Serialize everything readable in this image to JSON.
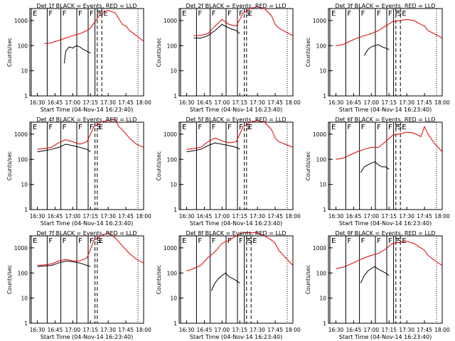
{
  "chart_data": {
    "type": "line",
    "layout": "3x3 grid",
    "panels": [
      {
        "title": "Det 1f BLACK = Events, RED = LLD",
        "xlabel": "Start Time (04-Nov-14 16:23:40)",
        "ylabel": "Counts/sec",
        "series": [
          {
            "color": "#000000",
            "x": [
              16.88,
              16.9,
              16.95,
              17.0,
              17.05,
              17.1,
              17.15,
              17.2,
              17.25
            ],
            "y": [
              20,
              60,
              90,
              80,
              100,
              90,
              70,
              60,
              50
            ]
          },
          {
            "color": "#dd0000",
            "x": [
              16.6,
              16.7,
              16.8,
              16.9,
              17.0,
              17.1,
              17.2,
              17.25,
              17.4,
              17.5,
              17.6,
              17.7,
              17.75,
              17.8,
              17.9,
              18.0
            ],
            "y": [
              120,
              130,
              160,
              200,
              250,
              300,
              400,
              500,
              2000,
              2500,
              2000,
              700,
              600,
              400,
              250,
              150
            ]
          }
        ],
        "markers": [
          {
            "label": "E"
          },
          {
            "label": "F"
          },
          {
            "label": "F"
          },
          {
            "label": "F"
          },
          {
            "label": "F"
          },
          {
            "label": "F"
          },
          {
            "label": "S"
          },
          {
            "label": "E"
          }
        ]
      },
      {
        "title": "Det 2f BLACK = Events, RED = LLD",
        "xlabel": "Start Time (04-Nov-14 16:23:40)",
        "ylabel": "Counts/sec",
        "series": [
          {
            "color": "#000000",
            "x": [
              16.6,
              16.7,
              16.8,
              16.9,
              17.0,
              17.1,
              17.2,
              17.25
            ],
            "y": [
              200,
              200,
              250,
              400,
              700,
              500,
              400,
              300
            ]
          },
          {
            "color": "#dd0000",
            "x": [
              16.6,
              16.7,
              16.8,
              16.9,
              17.0,
              17.1,
              17.2,
              17.3,
              17.4,
              17.5,
              17.6,
              17.7,
              17.75,
              17.8,
              17.9,
              18.0
            ],
            "y": [
              250,
              260,
              300,
              600,
              1100,
              700,
              600,
              2000,
              3000,
              3500,
              3000,
              1500,
              700,
              500,
              350,
              250
            ]
          }
        ],
        "markers": [
          {
            "label": "E"
          },
          {
            "label": "F"
          },
          {
            "label": "F"
          },
          {
            "label": "F"
          },
          {
            "label": "F"
          },
          {
            "label": "S"
          },
          {
            "label": "E"
          }
        ]
      },
      {
        "title": "Det 3f BLACK = Events, RED = LLD",
        "xlabel": "Start Time (04-Nov-14 16:23:40)",
        "ylabel": "Counts/sec",
        "series": [
          {
            "color": "#000000",
            "x": [
              16.9,
              16.95,
              17.0,
              17.05,
              17.1,
              17.15,
              17.2,
              17.25
            ],
            "y": [
              40,
              70,
              90,
              100,
              110,
              90,
              80,
              70
            ]
          },
          {
            "color": "#dd0000",
            "x": [
              16.5,
              16.6,
              16.7,
              16.8,
              16.9,
              17.0,
              17.1,
              17.2,
              17.3,
              17.5,
              17.6,
              17.7,
              17.75,
              17.8,
              18.0
            ],
            "y": [
              100,
              110,
              150,
              200,
              250,
              300,
              400,
              600,
              900,
              1100,
              1000,
              700,
              600,
              400,
              200
            ]
          }
        ],
        "markers": [
          {
            "label": "E"
          },
          {
            "label": "F"
          },
          {
            "label": "F"
          },
          {
            "label": "F"
          },
          {
            "label": "F"
          },
          {
            "label": "F"
          },
          {
            "label": "S"
          },
          {
            "label": "E"
          }
        ]
      },
      {
        "title": "Det 4f BLACK = Events, RED = LLD",
        "xlabel": "Start Time (04-Nov-14 16:23:40)",
        "ylabel": "Counts/sec",
        "series": [
          {
            "color": "#000000",
            "x": [
              16.5,
              16.6,
              16.7,
              16.8,
              16.9,
              17.0,
              17.1,
              17.2,
              17.25
            ],
            "y": [
              200,
              220,
              250,
              300,
              400,
              350,
              300,
              250,
              200
            ]
          },
          {
            "color": "#dd0000",
            "x": [
              16.5,
              16.6,
              16.7,
              16.8,
              16.9,
              17.0,
              17.1,
              17.2,
              17.3,
              17.4,
              17.5,
              17.6,
              17.65,
              17.7,
              17.8,
              17.9,
              18.0
            ],
            "y": [
              250,
              270,
              300,
              450,
              600,
              500,
              400,
              500,
              2000,
              3000,
              3500,
              4000,
              2000,
              1500,
              700,
              400,
              300
            ]
          }
        ],
        "markers": [
          {
            "label": "E"
          },
          {
            "label": "F"
          },
          {
            "label": "F"
          },
          {
            "label": "F"
          },
          {
            "label": "F"
          },
          {
            "label": "S"
          },
          {
            "label": "E"
          }
        ]
      },
      {
        "title": "Det 5f BLACK = Events, RED = LLD",
        "xlabel": "Start Time (04-Nov-14 16:23:40)",
        "ylabel": "Counts/sec",
        "series": [
          {
            "color": "#000000",
            "x": [
              16.5,
              16.6,
              16.7,
              16.8,
              16.9,
              17.0,
              17.1,
              17.2,
              17.25
            ],
            "y": [
              200,
              220,
              250,
              350,
              450,
              400,
              350,
              300,
              250
            ]
          },
          {
            "color": "#dd0000",
            "x": [
              16.5,
              16.6,
              16.7,
              16.8,
              16.9,
              17.0,
              17.1,
              17.2,
              17.3,
              17.4,
              17.5,
              17.6,
              17.7,
              17.75,
              17.8,
              18.0
            ],
            "y": [
              250,
              270,
              300,
              500,
              700,
              550,
              450,
              500,
              2000,
              3000,
              3500,
              3000,
              1500,
              700,
              500,
              300
            ]
          }
        ],
        "markers": [
          {
            "label": "E"
          },
          {
            "label": "F"
          },
          {
            "label": "F"
          },
          {
            "label": "F"
          },
          {
            "label": "F"
          },
          {
            "label": "S"
          },
          {
            "label": "E"
          }
        ]
      },
      {
        "title": "Det 6f BLACK = Events, RED = LLD",
        "xlabel": "Start Time (04-Nov-14 16:23:40)",
        "ylabel": "Counts/sec",
        "series": [
          {
            "color": "#000000",
            "x": [
              16.85,
              16.9,
              16.95,
              17.0,
              17.05,
              17.1,
              17.15,
              17.2,
              17.25
            ],
            "y": [
              30,
              50,
              60,
              70,
              80,
              60,
              50,
              50,
              40
            ]
          },
          {
            "color": "#dd0000",
            "x": [
              16.5,
              16.6,
              16.7,
              16.8,
              16.9,
              17.0,
              17.1,
              17.2,
              17.3,
              17.5,
              17.6,
              17.7,
              17.75,
              17.8,
              17.9,
              18.0
            ],
            "y": [
              100,
              110,
              150,
              200,
              250,
              300,
              300,
              500,
              900,
              1200,
              1100,
              800,
              2000,
              1000,
              400,
              200
            ]
          }
        ],
        "markers": [
          {
            "label": "E"
          },
          {
            "label": "F"
          },
          {
            "label": "F"
          },
          {
            "label": "F"
          },
          {
            "label": "F"
          },
          {
            "label": "F"
          },
          {
            "label": "S"
          },
          {
            "label": "E"
          }
        ]
      },
      {
        "title": "Det 7f BLACK = Events, RED = LLD",
        "xlabel": "Start Time (04-Nov-14 16:23:40)",
        "ylabel": "Counts/sec",
        "series": [
          {
            "color": "#000000",
            "x": [
              16.5,
              16.6,
              16.7,
              16.8,
              16.9,
              17.0,
              17.1,
              17.2,
              17.25
            ],
            "y": [
              180,
              190,
              200,
              250,
              300,
              280,
              250,
              200,
              180
            ]
          },
          {
            "color": "#dd0000",
            "x": [
              16.5,
              16.6,
              16.7,
              16.8,
              16.9,
              17.0,
              17.1,
              17.2,
              17.3,
              17.4,
              17.5,
              17.6,
              17.7,
              17.8,
              17.9,
              18.0
            ],
            "y": [
              200,
              210,
              230,
              300,
              350,
              300,
              300,
              400,
              2000,
              3000,
              4000,
              2500,
              1200,
              600,
              350,
              250
            ]
          }
        ],
        "markers": [
          {
            "label": "E"
          },
          {
            "label": "F"
          },
          {
            "label": "F"
          },
          {
            "label": "F"
          },
          {
            "label": "F"
          },
          {
            "label": "S"
          },
          {
            "label": "E"
          }
        ]
      },
      {
        "title": "Det 8f BLACK = Events, RED = LLD",
        "xlabel": "Start Time (04-Nov-14 16:23:40)",
        "ylabel": "Counts/sec",
        "series": [
          {
            "color": "#000000",
            "x": [
              16.85,
              16.9,
              16.95,
              17.0,
              17.05,
              17.1,
              17.15,
              17.2,
              17.25
            ],
            "y": [
              20,
              40,
              60,
              80,
              100,
              70,
              60,
              50,
              40
            ]
          },
          {
            "color": "#dd0000",
            "x": [
              16.5,
              16.6,
              16.7,
              16.8,
              16.9,
              17.0,
              17.1,
              17.2,
              17.3,
              17.5,
              17.6,
              17.7,
              17.75,
              17.8,
              17.9,
              18.0
            ],
            "y": [
              120,
              150,
              200,
              400,
              700,
              1500,
              2000,
              3000,
              4000,
              4000,
              3000,
              2000,
              1500,
              800,
              400,
              200
            ]
          }
        ],
        "markers": [
          {
            "label": "E"
          },
          {
            "label": "F"
          },
          {
            "label": "F"
          },
          {
            "label": "F"
          },
          {
            "label": "F"
          },
          {
            "label": "F"
          },
          {
            "label": "S"
          },
          {
            "label": "E"
          }
        ]
      },
      {
        "title": "Det 9f BLACK = Events, RED = LLD",
        "xlabel": "Start Time (04-Nov-14 16:23:40)",
        "ylabel": "Counts/sec",
        "series": [
          {
            "color": "#000000",
            "x": [
              16.85,
              16.9,
              16.95,
              17.0,
              17.05,
              17.1,
              17.15,
              17.2,
              17.25
            ],
            "y": [
              40,
              80,
              120,
              150,
              180,
              140,
              120,
              100,
              80
            ]
          },
          {
            "color": "#dd0000",
            "x": [
              16.5,
              16.6,
              16.7,
              16.8,
              16.9,
              17.0,
              17.1,
              17.2,
              17.3,
              17.5,
              17.6,
              17.7,
              17.75,
              17.8,
              17.9,
              18.0
            ],
            "y": [
              150,
              170,
              220,
              300,
              400,
              500,
              600,
              900,
              1500,
              1800,
              1500,
              1000,
              800,
              500,
              300,
              200
            ]
          }
        ],
        "markers": [
          {
            "label": "E"
          },
          {
            "label": "F"
          },
          {
            "label": "F"
          },
          {
            "label": "F"
          },
          {
            "label": "F"
          },
          {
            "label": "F"
          },
          {
            "label": "S"
          },
          {
            "label": "E"
          }
        ]
      }
    ],
    "x_ticks": [
      "16:30",
      "16:45",
      "17:00",
      "17:15",
      "17:30",
      "17:45",
      "18:00"
    ],
    "y_ticks": [
      "1",
      "10",
      "100",
      "1000"
    ],
    "xlim": [
      "16:23:40",
      "18:00"
    ],
    "ylim": [
      1,
      3000
    ],
    "yscale": "log",
    "colors": {
      "events": "#000000",
      "lld": "#dd0000"
    }
  }
}
